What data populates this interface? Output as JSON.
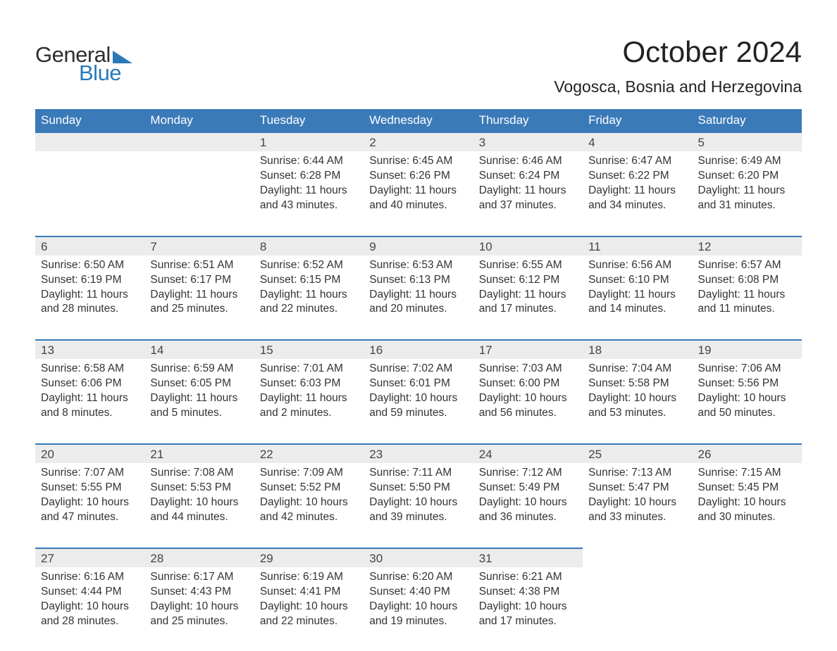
{
  "logo": {
    "line1": "General",
    "line2": "Blue"
  },
  "title": "October 2024",
  "location": "Vogosca, Bosnia and Herzegovina",
  "colors": {
    "header_blue": "#3a7ab8",
    "numrow_bg": "#ececec",
    "text": "#333333",
    "logo_blue": "#2a7ab9"
  },
  "typography": {
    "title_fontsize": 42,
    "location_fontsize": 23,
    "dayhead_fontsize": 17,
    "cell_fontsize": 15.5
  },
  "dayNames": [
    "Sunday",
    "Monday",
    "Tuesday",
    "Wednesday",
    "Thursday",
    "Friday",
    "Saturday"
  ],
  "weeks": [
    [
      null,
      null,
      {
        "n": "1",
        "sunrise": "6:44 AM",
        "sunset": "6:28 PM",
        "dl1": "11 hours",
        "dl2": "and 43 minutes."
      },
      {
        "n": "2",
        "sunrise": "6:45 AM",
        "sunset": "6:26 PM",
        "dl1": "11 hours",
        "dl2": "and 40 minutes."
      },
      {
        "n": "3",
        "sunrise": "6:46 AM",
        "sunset": "6:24 PM",
        "dl1": "11 hours",
        "dl2": "and 37 minutes."
      },
      {
        "n": "4",
        "sunrise": "6:47 AM",
        "sunset": "6:22 PM",
        "dl1": "11 hours",
        "dl2": "and 34 minutes."
      },
      {
        "n": "5",
        "sunrise": "6:49 AM",
        "sunset": "6:20 PM",
        "dl1": "11 hours",
        "dl2": "and 31 minutes."
      }
    ],
    [
      {
        "n": "6",
        "sunrise": "6:50 AM",
        "sunset": "6:19 PM",
        "dl1": "11 hours",
        "dl2": "and 28 minutes."
      },
      {
        "n": "7",
        "sunrise": "6:51 AM",
        "sunset": "6:17 PM",
        "dl1": "11 hours",
        "dl2": "and 25 minutes."
      },
      {
        "n": "8",
        "sunrise": "6:52 AM",
        "sunset": "6:15 PM",
        "dl1": "11 hours",
        "dl2": "and 22 minutes."
      },
      {
        "n": "9",
        "sunrise": "6:53 AM",
        "sunset": "6:13 PM",
        "dl1": "11 hours",
        "dl2": "and 20 minutes."
      },
      {
        "n": "10",
        "sunrise": "6:55 AM",
        "sunset": "6:12 PM",
        "dl1": "11 hours",
        "dl2": "and 17 minutes."
      },
      {
        "n": "11",
        "sunrise": "6:56 AM",
        "sunset": "6:10 PM",
        "dl1": "11 hours",
        "dl2": "and 14 minutes."
      },
      {
        "n": "12",
        "sunrise": "6:57 AM",
        "sunset": "6:08 PM",
        "dl1": "11 hours",
        "dl2": "and 11 minutes."
      }
    ],
    [
      {
        "n": "13",
        "sunrise": "6:58 AM",
        "sunset": "6:06 PM",
        "dl1": "11 hours",
        "dl2": "and 8 minutes."
      },
      {
        "n": "14",
        "sunrise": "6:59 AM",
        "sunset": "6:05 PM",
        "dl1": "11 hours",
        "dl2": "and 5 minutes."
      },
      {
        "n": "15",
        "sunrise": "7:01 AM",
        "sunset": "6:03 PM",
        "dl1": "11 hours",
        "dl2": "and 2 minutes."
      },
      {
        "n": "16",
        "sunrise": "7:02 AM",
        "sunset": "6:01 PM",
        "dl1": "10 hours",
        "dl2": "and 59 minutes."
      },
      {
        "n": "17",
        "sunrise": "7:03 AM",
        "sunset": "6:00 PM",
        "dl1": "10 hours",
        "dl2": "and 56 minutes."
      },
      {
        "n": "18",
        "sunrise": "7:04 AM",
        "sunset": "5:58 PM",
        "dl1": "10 hours",
        "dl2": "and 53 minutes."
      },
      {
        "n": "19",
        "sunrise": "7:06 AM",
        "sunset": "5:56 PM",
        "dl1": "10 hours",
        "dl2": "and 50 minutes."
      }
    ],
    [
      {
        "n": "20",
        "sunrise": "7:07 AM",
        "sunset": "5:55 PM",
        "dl1": "10 hours",
        "dl2": "and 47 minutes."
      },
      {
        "n": "21",
        "sunrise": "7:08 AM",
        "sunset": "5:53 PM",
        "dl1": "10 hours",
        "dl2": "and 44 minutes."
      },
      {
        "n": "22",
        "sunrise": "7:09 AM",
        "sunset": "5:52 PM",
        "dl1": "10 hours",
        "dl2": "and 42 minutes."
      },
      {
        "n": "23",
        "sunrise": "7:11 AM",
        "sunset": "5:50 PM",
        "dl1": "10 hours",
        "dl2": "and 39 minutes."
      },
      {
        "n": "24",
        "sunrise": "7:12 AM",
        "sunset": "5:49 PM",
        "dl1": "10 hours",
        "dl2": "and 36 minutes."
      },
      {
        "n": "25",
        "sunrise": "7:13 AM",
        "sunset": "5:47 PM",
        "dl1": "10 hours",
        "dl2": "and 33 minutes."
      },
      {
        "n": "26",
        "sunrise": "7:15 AM",
        "sunset": "5:45 PM",
        "dl1": "10 hours",
        "dl2": "and 30 minutes."
      }
    ],
    [
      {
        "n": "27",
        "sunrise": "6:16 AM",
        "sunset": "4:44 PM",
        "dl1": "10 hours",
        "dl2": "and 28 minutes."
      },
      {
        "n": "28",
        "sunrise": "6:17 AM",
        "sunset": "4:43 PM",
        "dl1": "10 hours",
        "dl2": "and 25 minutes."
      },
      {
        "n": "29",
        "sunrise": "6:19 AM",
        "sunset": "4:41 PM",
        "dl1": "10 hours",
        "dl2": "and 22 minutes."
      },
      {
        "n": "30",
        "sunrise": "6:20 AM",
        "sunset": "4:40 PM",
        "dl1": "10 hours",
        "dl2": "and 19 minutes."
      },
      {
        "n": "31",
        "sunrise": "6:21 AM",
        "sunset": "4:38 PM",
        "dl1": "10 hours",
        "dl2": "and 17 minutes."
      },
      null,
      null
    ]
  ]
}
